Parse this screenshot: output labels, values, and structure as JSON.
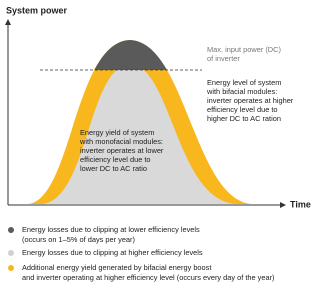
{
  "axes": {
    "y_label": "System power",
    "x_label": "Time"
  },
  "annotations": {
    "max_input": [
      "Max. input power (DC)",
      "of inverter"
    ],
    "bifacial": [
      "Energy level of system",
      "with bifacial modules:",
      "inverter operates at higher",
      "efficiency level due to",
      "higher DC to AC ration"
    ],
    "monofacial": [
      "Energy yield of system",
      "with monofacial modules:",
      "inverter operates at lower",
      "efficiency level due to",
      "lower DC to AC ratio"
    ]
  },
  "legend": [
    {
      "lines": [
        "Energy losses due to clipping at lower efficiency levels",
        "(occurs on 1–5% of days per year)"
      ]
    },
    {
      "lines": [
        "Energy losses due to clipping at higher efficiency levels"
      ]
    },
    {
      "lines": [
        "Additional energy yield generated by bifacial energy boost",
        "and inverter operating at higher efficiency level (occurs every day of the year)"
      ]
    }
  ]
}
